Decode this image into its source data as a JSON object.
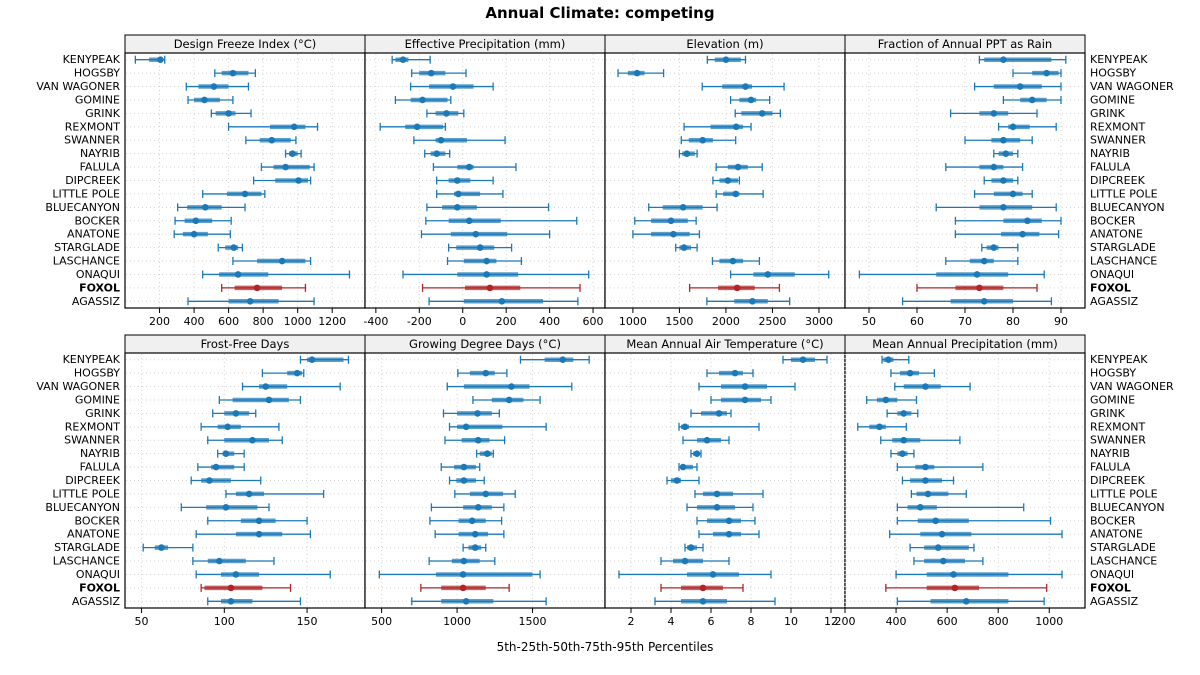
{
  "title": "Annual Climate: competing",
  "caption": "5th-25th-50th-75th-95th Percentiles",
  "percentiles": [
    5,
    25,
    50,
    75,
    95
  ],
  "highlight_station": "FOXOL",
  "stations": [
    "KENYPEAK",
    "HOGSBY",
    "VAN WAGONER",
    "GOMINE",
    "GRINK",
    "REXMONT",
    "SWANNER",
    "NAYRIB",
    "FALULA",
    "DIPCREEK",
    "LITTLE POLE",
    "BLUECANYON",
    "BOCKER",
    "ANATONE",
    "STARGLADE",
    "LASCHANCE",
    "ONAQUI",
    "FOXOL",
    "AGASSIZ"
  ],
  "colors": {
    "series": "#1C79B8",
    "highlight": "#B22427",
    "grid": "#D3D3D3",
    "header_bg": "#F0F0F0",
    "border": "#000000"
  },
  "chart_data": [
    {
      "type": "percentile-range",
      "title": "Design Freeze Index (°C)",
      "grid_row": 0,
      "grid_col": 0,
      "xlim": [
        0,
        1390
      ],
      "ticks": [
        200,
        400,
        600,
        800,
        1000,
        1200
      ],
      "values": [
        [
          60,
          140,
          205,
          220,
          230
        ],
        [
          520,
          560,
          625,
          715,
          755
        ],
        [
          355,
          425,
          515,
          600,
          715
        ],
        [
          365,
          400,
          460,
          550,
          625
        ],
        [
          500,
          525,
          600,
          640,
          730
        ],
        [
          600,
          840,
          980,
          1045,
          1115
        ],
        [
          700,
          780,
          850,
          960,
          990
        ],
        [
          930,
          950,
          970,
          1000,
          1020
        ],
        [
          790,
          860,
          930,
          1070,
          1095
        ],
        [
          745,
          870,
          1005,
          1060,
          1075
        ],
        [
          450,
          590,
          695,
          790,
          810
        ],
        [
          305,
          360,
          465,
          560,
          695
        ],
        [
          290,
          345,
          410,
          505,
          615
        ],
        [
          285,
          335,
          400,
          480,
          610
        ],
        [
          540,
          580,
          630,
          655,
          680
        ],
        [
          625,
          765,
          910,
          1045,
          1075
        ],
        [
          450,
          545,
          655,
          830,
          1300
        ],
        [
          560,
          635,
          765,
          910,
          1045
        ],
        [
          365,
          600,
          725,
          890,
          1095
        ]
      ]
    },
    {
      "type": "percentile-range",
      "title": "Effective Precipitation (mm)",
      "grid_row": 0,
      "grid_col": 1,
      "xlim": [
        -450,
        655
      ],
      "ticks": [
        -400,
        -200,
        0,
        200,
        400,
        600
      ],
      "values": [
        [
          -325,
          -310,
          -275,
          -250,
          -150
        ],
        [
          -235,
          -200,
          -145,
          -80,
          15
        ],
        [
          -240,
          -155,
          -45,
          50,
          140
        ],
        [
          -310,
          -240,
          -185,
          -70,
          -55
        ],
        [
          -165,
          -125,
          -75,
          -20,
          5
        ],
        [
          -380,
          -265,
          -210,
          -90,
          -80
        ],
        [
          -225,
          -125,
          -100,
          20,
          195
        ],
        [
          -175,
          -148,
          -120,
          -80,
          -60
        ],
        [
          -135,
          -25,
          30,
          50,
          245
        ],
        [
          -120,
          -65,
          -25,
          35,
          140
        ],
        [
          -120,
          -40,
          -20,
          80,
          185
        ],
        [
          -165,
          -95,
          -25,
          65,
          395
        ],
        [
          -170,
          -65,
          30,
          175,
          525
        ],
        [
          -190,
          -55,
          60,
          205,
          400
        ],
        [
          -65,
          -30,
          80,
          145,
          225
        ],
        [
          -70,
          5,
          110,
          155,
          270
        ],
        [
          -275,
          -25,
          110,
          255,
          580
        ],
        [
          -185,
          10,
          125,
          265,
          540
        ],
        [
          -155,
          5,
          180,
          370,
          530
        ]
      ]
    },
    {
      "type": "percentile-range",
      "title": "Elevation (m)",
      "grid_row": 0,
      "grid_col": 2,
      "xlim": [
        700,
        3280
      ],
      "ticks": [
        1000,
        1500,
        2000,
        2500,
        3000
      ],
      "values": [
        [
          1800,
          1880,
          2000,
          2160,
          2210
        ],
        [
          840,
          945,
          1045,
          1125,
          1330
        ],
        [
          1745,
          1960,
          2210,
          2280,
          2625
        ],
        [
          2050,
          2145,
          2270,
          2325,
          2470
        ],
        [
          2100,
          2165,
          2390,
          2500,
          2585
        ],
        [
          1550,
          1835,
          2110,
          2185,
          2270
        ],
        [
          1520,
          1600,
          1750,
          1860,
          2105
        ],
        [
          1500,
          1530,
          1580,
          1665,
          1690
        ],
        [
          1895,
          2020,
          2130,
          2235,
          2390
        ],
        [
          1860,
          1930,
          2020,
          2130,
          2145
        ],
        [
          1895,
          1970,
          2105,
          2145,
          2400
        ],
        [
          1170,
          1320,
          1540,
          1750,
          1905
        ],
        [
          1020,
          1195,
          1410,
          1590,
          1680
        ],
        [
          1000,
          1195,
          1435,
          1610,
          1715
        ],
        [
          1460,
          1500,
          1550,
          1625,
          1690
        ],
        [
          1855,
          1930,
          2075,
          2185,
          2360
        ],
        [
          2050,
          2295,
          2450,
          2740,
          3105
        ],
        [
          1610,
          1915,
          2120,
          2310,
          2575
        ],
        [
          1795,
          2090,
          2285,
          2450,
          2685
        ]
      ]
    },
    {
      "type": "percentile-range",
      "title": "Fraction of Annual PPT as Rain",
      "grid_row": 0,
      "grid_col": 3,
      "xlim": [
        45,
        95
      ],
      "ticks": [
        50,
        60,
        70,
        80,
        90
      ],
      "values": [
        [
          73,
          74,
          78,
          88,
          91
        ],
        [
          80,
          84,
          87,
          89.5,
          90
        ],
        [
          72,
          76,
          81.5,
          86,
          90
        ],
        [
          78,
          81.5,
          84,
          87,
          90
        ],
        [
          67,
          73,
          76,
          79,
          85
        ],
        [
          77,
          79,
          80,
          83.5,
          89
        ],
        [
          70,
          75.5,
          78,
          81.5,
          84
        ],
        [
          76,
          77,
          78.5,
          80,
          81
        ],
        [
          66,
          73,
          76,
          78,
          82
        ],
        [
          74,
          75.5,
          78,
          80,
          81
        ],
        [
          72,
          76,
          80,
          82,
          84
        ],
        [
          64,
          73,
          78,
          84,
          89
        ],
        [
          68,
          78,
          83,
          86,
          90
        ],
        [
          68,
          77.5,
          82,
          85.5,
          89.5
        ],
        [
          73.5,
          74.5,
          76,
          77,
          81
        ],
        [
          66,
          71,
          74,
          76,
          81
        ],
        [
          48,
          64,
          72.5,
          79,
          86.5
        ],
        [
          60,
          68,
          73,
          78,
          85
        ],
        [
          57,
          67,
          74,
          80,
          88
        ]
      ]
    },
    {
      "type": "percentile-range",
      "title": "Frost-Free Days",
      "grid_row": 1,
      "grid_col": 0,
      "xlim": [
        40,
        185
      ],
      "ticks": [
        50,
        100,
        150
      ],
      "values": [
        [
          146,
          150,
          153,
          172,
          175
        ],
        [
          123,
          138,
          144,
          147,
          148
        ],
        [
          111,
          121,
          125,
          138,
          170
        ],
        [
          97,
          105,
          127,
          139,
          146
        ],
        [
          93,
          100,
          107,
          115,
          119
        ],
        [
          86,
          96,
          102,
          110,
          133
        ],
        [
          90,
          100,
          117,
          127,
          135
        ],
        [
          96,
          99,
          101,
          106,
          112
        ],
        [
          84,
          92,
          95,
          106,
          112
        ],
        [
          80,
          86,
          91,
          104,
          122
        ],
        [
          101,
          107,
          115,
          124,
          160
        ],
        [
          74,
          89,
          101,
          120,
          127
        ],
        [
          90,
          110,
          121,
          131,
          150
        ],
        [
          83,
          107,
          121,
          135,
          152
        ],
        [
          51,
          58,
          62,
          66,
          81
        ],
        [
          81,
          90,
          97,
          113,
          130
        ],
        [
          83,
          98,
          107,
          121,
          164
        ],
        [
          86,
          88,
          104,
          123,
          140
        ],
        [
          90,
          98,
          104,
          117,
          146
        ]
      ]
    },
    {
      "type": "percentile-range",
      "title": "Growing Degree Days (°C)",
      "grid_row": 1,
      "grid_col": 1,
      "xlim": [
        390,
        1980
      ],
      "ticks": [
        500,
        1000,
        1500
      ],
      "values": [
        [
          1420,
          1580,
          1700,
          1770,
          1875
        ],
        [
          1005,
          1085,
          1190,
          1250,
          1330
        ],
        [
          935,
          1045,
          1360,
          1480,
          1760
        ],
        [
          1105,
          1230,
          1345,
          1440,
          1550
        ],
        [
          910,
          1000,
          1135,
          1230,
          1280
        ],
        [
          950,
          1000,
          1060,
          1300,
          1590
        ],
        [
          920,
          1030,
          1140,
          1215,
          1315
        ],
        [
          1130,
          1150,
          1200,
          1230,
          1240
        ],
        [
          895,
          980,
          1045,
          1125,
          1150
        ],
        [
          950,
          995,
          1045,
          1125,
          1180
        ],
        [
          985,
          1085,
          1190,
          1305,
          1385
        ],
        [
          830,
          1040,
          1140,
          1230,
          1310
        ],
        [
          820,
          1010,
          1100,
          1190,
          1295
        ],
        [
          855,
          1010,
          1120,
          1205,
          1310
        ],
        [
          1040,
          1075,
          1120,
          1160,
          1190
        ],
        [
          815,
          965,
          1045,
          1150,
          1250
        ],
        [
          485,
          860,
          1040,
          1500,
          1550
        ],
        [
          760,
          895,
          1040,
          1190,
          1345
        ],
        [
          700,
          895,
          1060,
          1240,
          1590
        ]
      ]
    },
    {
      "type": "percentile-range",
      "title": "Mean Annual Air Temperature (°C)",
      "grid_row": 1,
      "grid_col": 2,
      "xlim": [
        0.7,
        12.7
      ],
      "ticks": [
        2,
        4,
        6,
        8,
        10,
        12
      ],
      "values": [
        [
          9.6,
          10.0,
          10.6,
          11.2,
          11.8
        ],
        [
          5.8,
          6.4,
          7.2,
          7.6,
          8.1
        ],
        [
          5.4,
          6.5,
          7.7,
          8.8,
          10.2
        ],
        [
          6.0,
          6.5,
          7.7,
          8.5,
          9.0
        ],
        [
          5.0,
          5.5,
          6.4,
          6.8,
          7.0
        ],
        [
          4.4,
          4.5,
          4.7,
          4.9,
          8.4
        ],
        [
          4.6,
          5.3,
          5.8,
          6.5,
          6.9
        ],
        [
          5.0,
          5.1,
          5.3,
          5.4,
          5.5
        ],
        [
          4.4,
          4.5,
          4.6,
          5.1,
          5.3
        ],
        [
          3.8,
          4.0,
          4.3,
          4.5,
          5.4
        ],
        [
          5.2,
          5.6,
          6.3,
          7.1,
          8.6
        ],
        [
          4.8,
          5.3,
          6.3,
          7.2,
          8.1
        ],
        [
          5.3,
          5.8,
          6.9,
          7.5,
          8.2
        ],
        [
          5.4,
          6.1,
          6.9,
          7.5,
          8.4
        ],
        [
          4.7,
          4.8,
          5.0,
          5.3,
          5.6
        ],
        [
          3.5,
          4.1,
          4.7,
          5.6,
          6.9
        ],
        [
          1.4,
          4.8,
          6.1,
          7.4,
          9.0
        ],
        [
          3.5,
          4.5,
          5.6,
          6.6,
          7.6
        ],
        [
          3.2,
          4.5,
          5.6,
          6.8,
          9.2
        ]
      ]
    },
    {
      "type": "percentile-range",
      "title": "Mean Annual Precipitation (mm)",
      "grid_row": 1,
      "grid_col": 3,
      "xlim": [
        200,
        1140
      ],
      "ticks": [
        200,
        400,
        600,
        800,
        1000
      ],
      "values": [
        [
          345,
          350,
          370,
          390,
          450
        ],
        [
          380,
          415,
          455,
          490,
          550
        ],
        [
          395,
          430,
          515,
          575,
          690
        ],
        [
          285,
          325,
          360,
          405,
          480
        ],
        [
          365,
          405,
          430,
          460,
          485
        ],
        [
          250,
          295,
          335,
          360,
          440
        ],
        [
          340,
          385,
          430,
          495,
          650
        ],
        [
          380,
          405,
          425,
          445,
          470
        ],
        [
          405,
          475,
          515,
          550,
          740
        ],
        [
          425,
          455,
          515,
          580,
          625
        ],
        [
          460,
          480,
          525,
          605,
          675
        ],
        [
          405,
          445,
          495,
          560,
          900
        ],
        [
          405,
          485,
          555,
          685,
          1005
        ],
        [
          375,
          495,
          580,
          695,
          1050
        ],
        [
          455,
          510,
          565,
          685,
          705
        ],
        [
          470,
          510,
          585,
          670,
          740
        ],
        [
          400,
          520,
          625,
          840,
          1050
        ],
        [
          360,
          520,
          630,
          725,
          990
        ],
        [
          405,
          535,
          675,
          840,
          980
        ]
      ]
    }
  ]
}
